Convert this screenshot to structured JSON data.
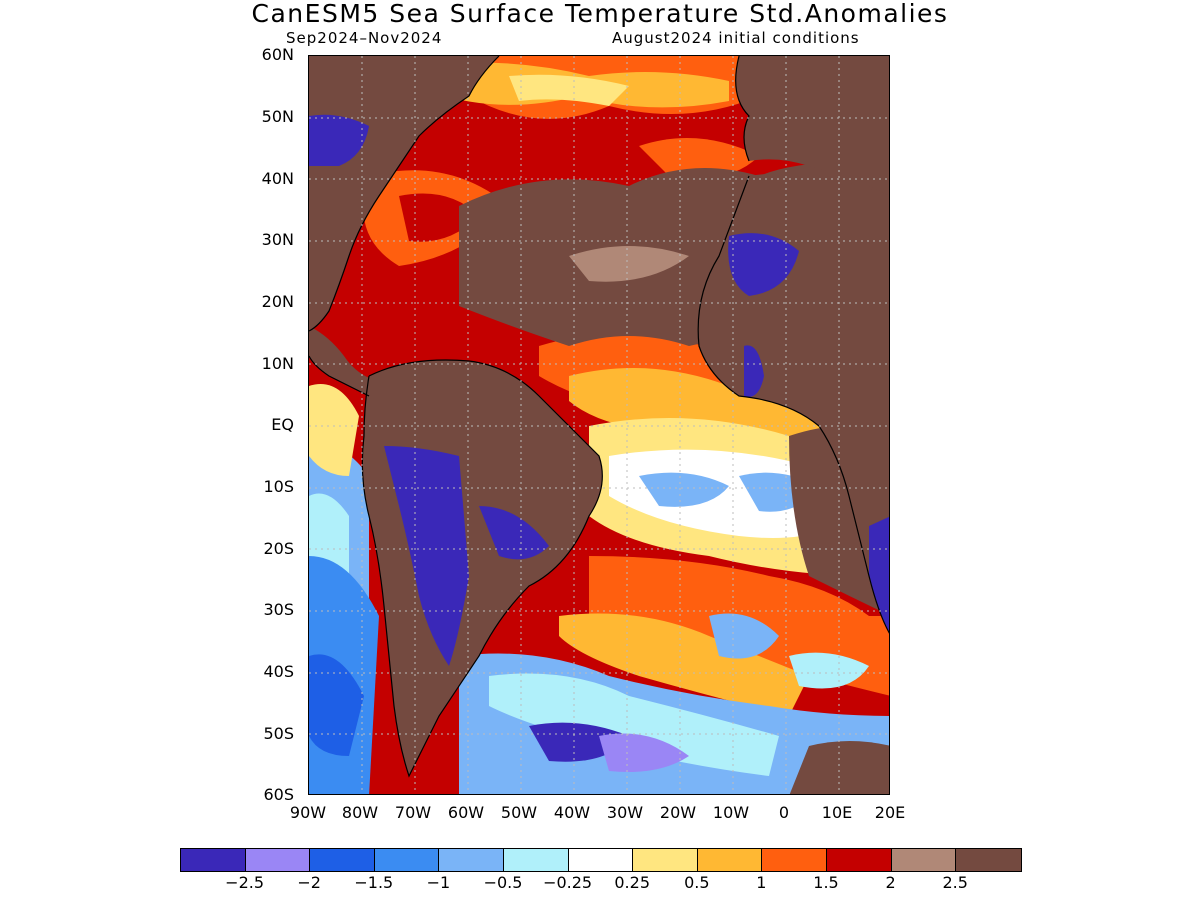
{
  "title": "CanESM5 Sea Surface Temperature Std.Anomalies",
  "period": "Sep2024–Nov2024",
  "initial_conditions": "August2024 initial conditions",
  "lat_labels": [
    "60N",
    "50N",
    "40N",
    "30N",
    "20N",
    "10N",
    "EQ",
    "10S",
    "20S",
    "30S",
    "40S",
    "50S",
    "60S"
  ],
  "lon_labels": [
    "90W",
    "80W",
    "70W",
    "60W",
    "50W",
    "40W",
    "30W",
    "20W",
    "10W",
    "0",
    "10E",
    "20E"
  ],
  "legend": {
    "colors": [
      "#3a28b8",
      "#9a86f5",
      "#1e5fe6",
      "#3b8cf2",
      "#7ab4f7",
      "#b0f0fa",
      "#ffffff",
      "#ffe680",
      "#ffb833",
      "#ff5f0f",
      "#c40000",
      "#b08877",
      "#744a40"
    ],
    "labels": [
      "−2.5",
      "−2",
      "−1.5",
      "−1",
      "−0.5",
      "−0.25",
      "0.25",
      "0.5",
      "1",
      "1.5",
      "2",
      "2.5"
    ]
  },
  "map": {
    "land_color": "#744a40",
    "coastline_color": "#000000"
  }
}
